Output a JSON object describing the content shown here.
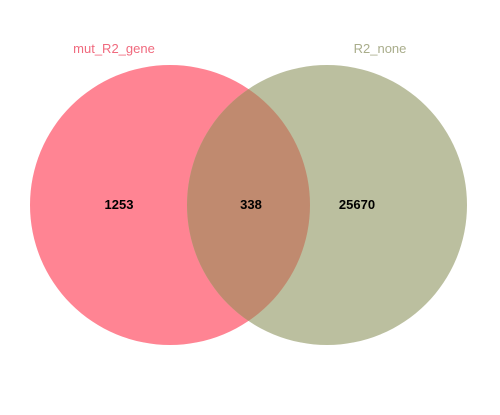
{
  "venn": {
    "sets": [
      {
        "name": "mut_R2_gene",
        "color": "#ff8493"
      },
      {
        "name": "R2_none",
        "color": "#bbbf9f"
      }
    ],
    "overlap_color": "#c08a6f",
    "label_colors": {
      "mut_R2_gene": "#f06a7e",
      "R2_none": "#a9ad8b"
    },
    "counts": {
      "left_only": "1253",
      "intersection": "338",
      "right_only": "25670"
    }
  }
}
